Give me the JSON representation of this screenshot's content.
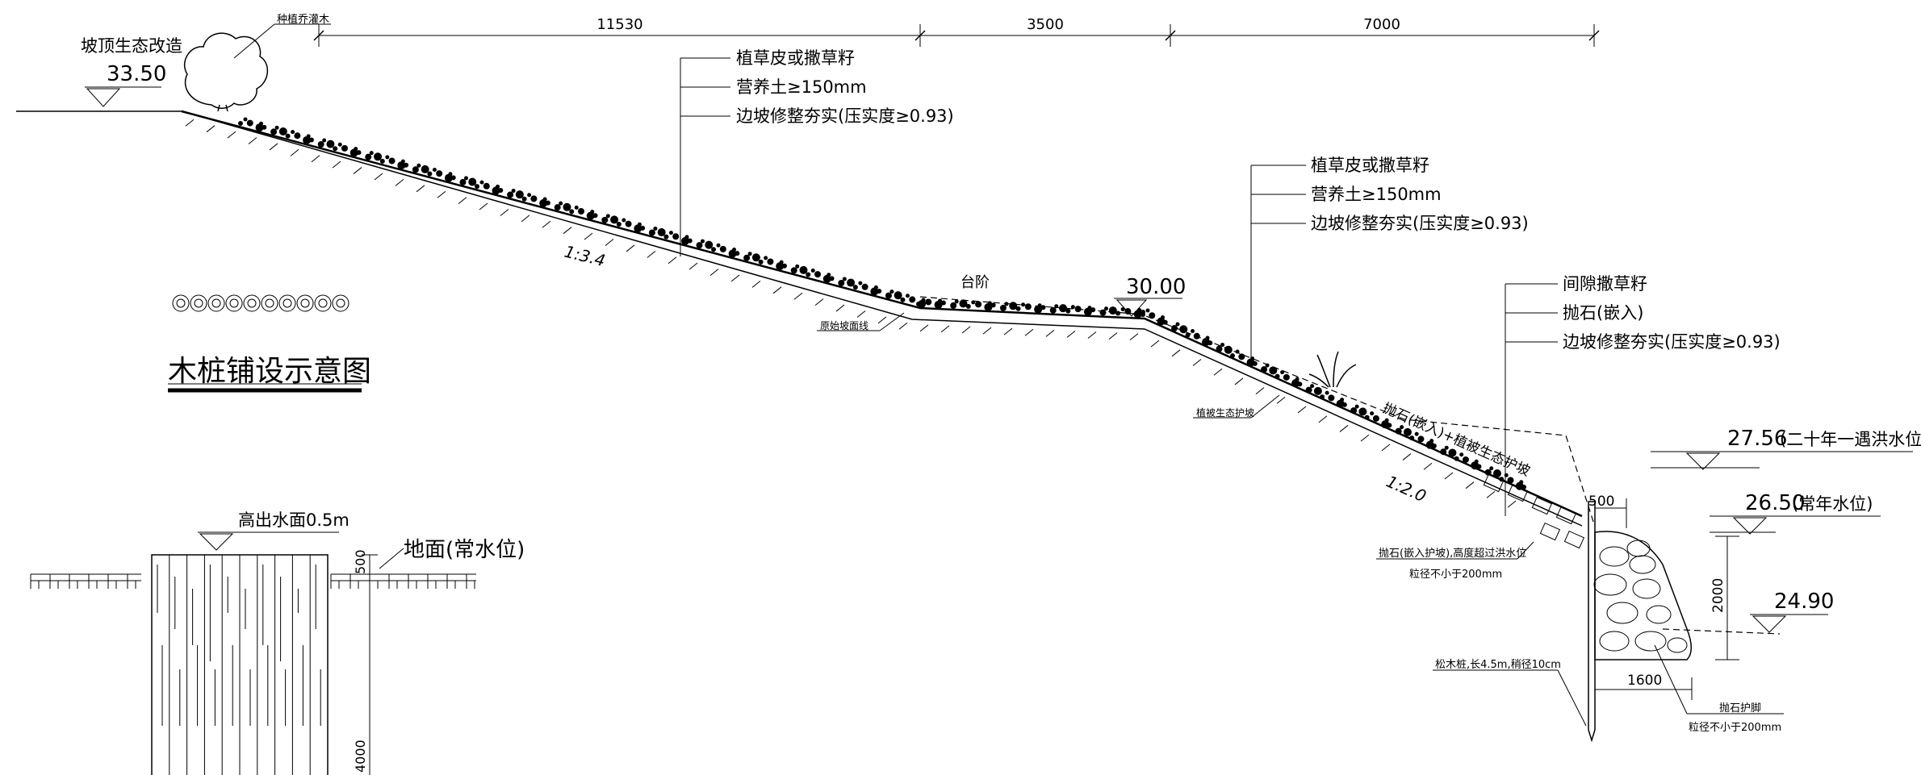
{
  "top_dims": [
    "11530",
    "3500",
    "7000"
  ],
  "left_top": {
    "title": "坡顶生态改造",
    "elev": "33.50",
    "shrub": "种植乔灌木"
  },
  "upper_slope": {
    "layers": [
      "植草皮或撒草籽",
      "营养土≥150mm",
      "边坡修整夯实(压实度≥0.93)"
    ],
    "ratio": "1:3.4",
    "terrace": "台阶",
    "original_line": "原始坡面线"
  },
  "mid": {
    "elev": "30.00",
    "layers": [
      "植草皮或撒草籽",
      "营养土≥150mm",
      "边坡修整夯实(压实度≥0.93)"
    ],
    "veg_label": "植被生态护坡",
    "slope_label": "抛石(嵌入)+植被生态护坡",
    "ratio": "1:2.0"
  },
  "rock": {
    "layers": [
      "间隙撒草籽",
      "抛石(嵌入)",
      "边坡修整夯实(压实度≥0.93)"
    ],
    "note_line1": "抛石(嵌入护坡),高度超过洪水位",
    "note_line2": "粒径不小于200mm",
    "pile_note": "松木桩,长4.5m,稍径10cm",
    "toe_note_line1": "抛石护脚",
    "toe_note_line2": "粒径不小于200mm",
    "dim_500": "500",
    "dim_1600": "1600",
    "dim_2000": "2000"
  },
  "water": {
    "flood_elev": "27.56",
    "flood_label": "(二十年一遇洪水位)",
    "normal_elev": "26.50",
    "normal_label": "(常年水位)",
    "bottom_elev": "24.90"
  },
  "pile_detail": {
    "title": "木桩铺设示意图",
    "above_water": "高出水面0.5m",
    "ground_label": "地面(常水位)",
    "dim_500": "500",
    "dim_4000": "4000"
  }
}
